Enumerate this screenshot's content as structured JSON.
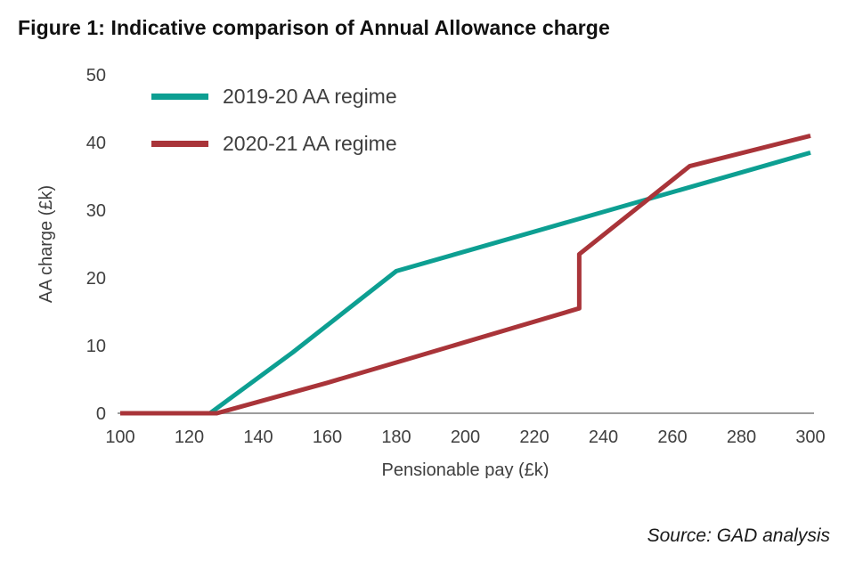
{
  "source": "Source: GAD analysis",
  "chart_data": {
    "type": "line",
    "title": "Figure 1: Indicative comparison of Annual Allowance charge",
    "xlabel": "Pensionable pay (£k)",
    "ylabel": "AA charge (£k)",
    "xlim": [
      100,
      300
    ],
    "ylim": [
      0,
      50
    ],
    "x_ticks": [
      100,
      120,
      140,
      160,
      180,
      200,
      220,
      240,
      260,
      280,
      300
    ],
    "y_ticks": [
      0,
      10,
      20,
      30,
      40,
      50
    ],
    "grid": false,
    "legend_position": "top-left",
    "axis_color": "#9c9c9c",
    "series": [
      {
        "name": "2019-20 AA regime",
        "color": "#0d9f92",
        "points": [
          [
            100,
            0
          ],
          [
            126,
            0
          ],
          [
            150,
            9
          ],
          [
            180,
            21
          ],
          [
            300,
            38.5
          ]
        ]
      },
      {
        "name": "2020-21 AA regime",
        "color": "#a93439",
        "points": [
          [
            100,
            0
          ],
          [
            128,
            0
          ],
          [
            160,
            4.5
          ],
          [
            180,
            7.5
          ],
          [
            233,
            15.5
          ],
          [
            233,
            23.5
          ],
          [
            265,
            36.5
          ],
          [
            300,
            41
          ]
        ]
      }
    ]
  }
}
